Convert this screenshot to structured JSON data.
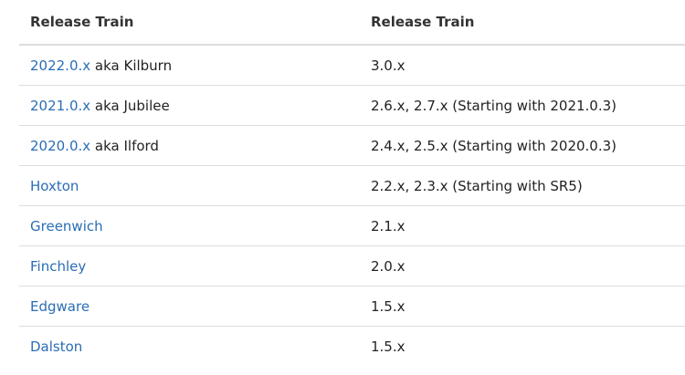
{
  "table": {
    "headers": [
      "Release Train",
      "Release Train"
    ],
    "rows": [
      {
        "link": "2022.0.x",
        "suffix": " aka Kilburn",
        "version": "3.0.x"
      },
      {
        "link": "2021.0.x",
        "suffix": " aka Jubilee",
        "version": "2.6.x, 2.7.x (Starting with 2021.0.3)"
      },
      {
        "link": "2020.0.x",
        "suffix": " aka Ilford",
        "version": "2.4.x, 2.5.x (Starting with 2020.0.3)"
      },
      {
        "link": "Hoxton",
        "suffix": "",
        "version": "2.2.x, 2.3.x (Starting with SR5)"
      },
      {
        "link": "Greenwich",
        "suffix": "",
        "version": "2.1.x"
      },
      {
        "link": "Finchley",
        "suffix": "",
        "version": "2.0.x"
      },
      {
        "link": "Edgware",
        "suffix": "",
        "version": "1.5.x"
      },
      {
        "link": "Dalston",
        "suffix": "",
        "version": "1.5.x"
      }
    ]
  },
  "colors": {
    "link": "#2a6db5",
    "text": "#222222",
    "border": "#dddddd"
  }
}
